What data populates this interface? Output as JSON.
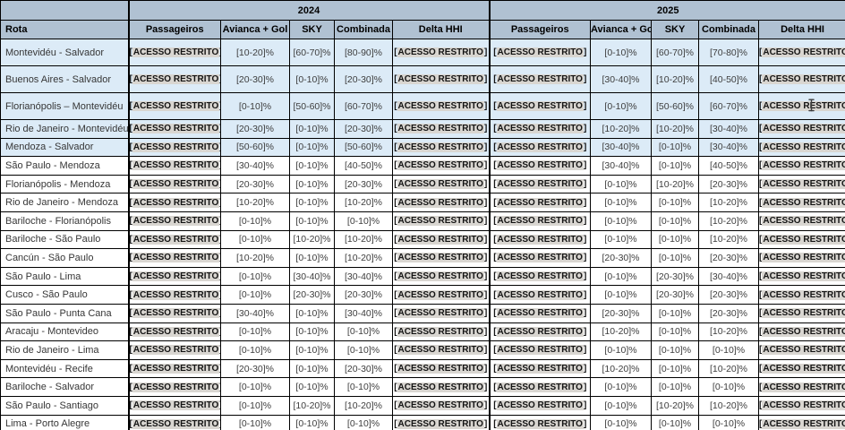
{
  "table": {
    "corner_label": "",
    "rota_header": "Rota",
    "restricted_label": "ACESSO RESTRITO",
    "year_groups": [
      {
        "label": "2024"
      },
      {
        "label": "2025"
      }
    ],
    "columns": [
      "Passageiros",
      "Avianca + Gol",
      "SKY",
      "Combinada",
      "Delta HHI"
    ],
    "rows": [
      {
        "route": "Montevidéu - Salvador",
        "shaded": true,
        "tall": true,
        "cells_2024": [
          "[ACESSO RESTRITO]",
          "[10-20]%",
          "[60-70]%",
          "[80-90]%",
          "[ACESSO RESTRITO]"
        ],
        "cells_2025": [
          "[ACESSO RESTRITO]",
          "[0-10]%",
          "[60-70]%",
          "[70-80]%",
          "[ACESSO RESTRITO]"
        ]
      },
      {
        "route": "Buenos Aires - Salvador",
        "shaded": true,
        "tall": true,
        "cells_2024": [
          "[ACESSO RESTRITO]",
          "[20-30]%",
          "[0-10]%",
          "[20-30]%",
          "[ACESSO RESTRITO]"
        ],
        "cells_2025": [
          "[ACESSO RESTRITO]",
          "[30-40]%",
          "[10-20]%",
          "[40-50]%",
          "[ACESSO RESTRITO]"
        ]
      },
      {
        "route": "Florianópolis – Montevidéu",
        "shaded": true,
        "tall": true,
        "cells_2024": [
          "[ACESSO RESTRITO]",
          "[0-10]%",
          "[50-60]%",
          "[60-70]%",
          "[ACESSO RESTRITO]"
        ],
        "cells_2025": [
          "[ACESSO RESTRITO]",
          "[0-10]%",
          "[50-60]%",
          "[60-70]%",
          "[ACESSO RESTRITO]"
        ]
      },
      {
        "route": "Rio de Janeiro - Montevidéu",
        "shaded": true,
        "tall": false,
        "cells_2024": [
          "[ACESSO RESTRITO]",
          "[20-30]%",
          "[0-10]%",
          "[20-30]%",
          "[ACESSO RESTRITO]"
        ],
        "cells_2025": [
          "[ACESSO RESTRITO]",
          "[10-20]%",
          "[10-20]%",
          "[30-40]%",
          "[ACESSO RESTRITO]"
        ]
      },
      {
        "route": "Mendoza - Salvador",
        "shaded": true,
        "tall": false,
        "cells_2024": [
          "[ACESSO RESTRITO]",
          "[50-60]%",
          "[0-10]%",
          "[50-60]%",
          "[ACESSO RESTRITO]"
        ],
        "cells_2025": [
          "[ACESSO RESTRITO]",
          "[30-40]%",
          "[0-10]%",
          "[30-40]%",
          "[ACESSO RESTRITO]"
        ]
      },
      {
        "route": "São Paulo - Mendoza",
        "shaded": false,
        "tall": false,
        "cells_2024": [
          "[ACESSO RESTRITO]",
          "[30-40]%",
          "[0-10]%",
          "[40-50]%",
          "[ACESSO RESTRITO]"
        ],
        "cells_2025": [
          "[ACESSO RESTRITO]",
          "[30-40]%",
          "[0-10]%",
          "[40-50]%",
          "[ACESSO RESTRITO]"
        ]
      },
      {
        "route": "Florianópolis - Mendoza",
        "shaded": false,
        "tall": false,
        "cells_2024": [
          "[ACESSO RESTRITO]",
          "[20-30]%",
          "[0-10]%",
          "[20-30]%",
          "[ACESSO RESTRITO]"
        ],
        "cells_2025": [
          "[ACESSO RESTRITO]",
          "[0-10]%",
          "[10-20]%",
          "[20-30]%",
          "[ACESSO RESTRITO]"
        ]
      },
      {
        "route": "Rio de Janeiro - Mendoza",
        "shaded": false,
        "tall": false,
        "cells_2024": [
          "[ACESSO RESTRITO]",
          "[10-20]%",
          "[0-10]%",
          "[10-20]%",
          "[ACESSO RESTRITO]"
        ],
        "cells_2025": [
          "[ACESSO RESTRITO]",
          "[0-10]%",
          "[0-10]%",
          "[10-20]%",
          "[ACESSO RESTRITO]"
        ]
      },
      {
        "route": "Bariloche - Florianópolis",
        "shaded": false,
        "tall": false,
        "cells_2024": [
          "[ACESSO RESTRITO]",
          "[0-10]%",
          "[0-10]%",
          "[0-10]%",
          "[ACESSO RESTRITO]"
        ],
        "cells_2025": [
          "[ACESSO RESTRITO]",
          "[0-10]%",
          "[0-10]%",
          "[10-20]%",
          "[ACESSO RESTRITO]"
        ]
      },
      {
        "route": "Bariloche - São Paulo",
        "shaded": false,
        "tall": false,
        "cells_2024": [
          "[ACESSO RESTRITO]",
          "[0-10]%",
          "[10-20]%",
          "[10-20]%",
          "[ACESSO RESTRITO]"
        ],
        "cells_2025": [
          "[ACESSO RESTRITO]",
          "[0-10]%",
          "[0-10]%",
          "[10-20]%",
          "[ACESSO RESTRITO]"
        ]
      },
      {
        "route": "Cancún - São Paulo",
        "shaded": false,
        "tall": false,
        "cells_2024": [
          "[ACESSO RESTRITO]",
          "[10-20]%",
          "[0-10]%",
          "[10-20]%",
          "[ACESSO RESTRITO]"
        ],
        "cells_2025": [
          "[ACESSO RESTRITO]",
          "[20-30]%",
          "[0-10]%",
          "[20-30]%",
          "[ACESSO RESTRITO]"
        ]
      },
      {
        "route": "São Paulo - Lima",
        "shaded": false,
        "tall": false,
        "cells_2024": [
          "[ACESSO RESTRITO]",
          "[0-10]%",
          "[30-40]%",
          "[30-40]%",
          "[ACESSO RESTRITO]"
        ],
        "cells_2025": [
          "[ACESSO RESTRITO]",
          "[0-10]%",
          "[20-30]%",
          "[30-40]%",
          "[ACESSO RESTRITO]"
        ]
      },
      {
        "route": "Cusco - São Paulo",
        "shaded": false,
        "tall": false,
        "cells_2024": [
          "[ACESSO RESTRITO]",
          "[0-10]%",
          "[20-30]%",
          "[20-30]%",
          "[ACESSO RESTRITO]"
        ],
        "cells_2025": [
          "[ACESSO RESTRITO]",
          "[0-10]%",
          "[20-30]%",
          "[20-30]%",
          "[ACESSO RESTRITO]"
        ]
      },
      {
        "route": "São Paulo - Punta Cana",
        "shaded": false,
        "tall": false,
        "cells_2024": [
          "[ACESSO RESTRITO]",
          "[30-40]%",
          "[0-10]%",
          "[30-40]%",
          "[ACESSO RESTRITO]"
        ],
        "cells_2025": [
          "[ACESSO RESTRITO]",
          "[20-30]%",
          "[0-10]%",
          "[20-30]%",
          "[ACESSO RESTRITO]"
        ]
      },
      {
        "route": "Aracaju - Montevideo",
        "shaded": false,
        "tall": false,
        "cells_2024": [
          "[ACESSO RESTRITO]",
          "[0-10]%",
          "[0-10]%",
          "[0-10]%",
          "[ACESSO RESTRITO]"
        ],
        "cells_2025": [
          "[ACESSO RESTRITO]",
          "[10-20]%",
          "[0-10]%",
          "[10-20]%",
          "[ACESSO RESTRITO]"
        ]
      },
      {
        "route": "Rio de Janeiro - Lima",
        "shaded": false,
        "tall": false,
        "cells_2024": [
          "[ACESSO RESTRITO]",
          "[0-10]%",
          "[0-10]%",
          "[0-10]%",
          "[ACESSO RESTRITO]"
        ],
        "cells_2025": [
          "[ACESSO RESTRITO]",
          "[0-10]%",
          "[0-10]%",
          "[0-10]%",
          "[ACESSO RESTRITO]"
        ]
      },
      {
        "route": "Montevidéu - Recife",
        "shaded": false,
        "tall": false,
        "cells_2024": [
          "[ACESSO RESTRITO]",
          "[20-30]%",
          "[0-10]%",
          "[20-30]%",
          "[ACESSO RESTRITO]"
        ],
        "cells_2025": [
          "[ACESSO RESTRITO]",
          "[10-20]%",
          "[0-10]%",
          "[10-20]%",
          "[ACESSO RESTRITO]"
        ]
      },
      {
        "route": "Bariloche - Salvador",
        "shaded": false,
        "tall": false,
        "cells_2024": [
          "[ACESSO RESTRITO]",
          "[0-10]%",
          "[0-10]%",
          "[0-10]%",
          "[ACESSO RESTRITO]"
        ],
        "cells_2025": [
          "[ACESSO RESTRITO]",
          "[0-10]%",
          "[0-10]%",
          "[0-10]%",
          "[ACESSO RESTRITO]"
        ]
      },
      {
        "route": "São Paulo - Santiago",
        "shaded": false,
        "tall": false,
        "cells_2024": [
          "[ACESSO RESTRITO]",
          "[0-10]%",
          "[10-20]%",
          "[10-20]%",
          "[ACESSO RESTRITO]"
        ],
        "cells_2025": [
          "[ACESSO RESTRITO]",
          "[0-10]%",
          "[10-20]%",
          "[10-20]%",
          "[ACESSO RESTRITO]"
        ]
      },
      {
        "route": "Lima - Porto Alegre",
        "shaded": false,
        "tall": false,
        "cells_2024": [
          "[ACESSO RESTRITO]",
          "[0-10]%",
          "[0-10]%",
          "[0-10]%",
          "[ACESSO RESTRITO]"
        ],
        "cells_2025": [
          "[ACESSO RESTRITO]",
          "[0-10]%",
          "[0-10]%",
          "[0-10]%",
          "[ACESSO RESTRITO]"
        ]
      }
    ]
  },
  "cursor": {
    "type": "text-i-beam"
  }
}
